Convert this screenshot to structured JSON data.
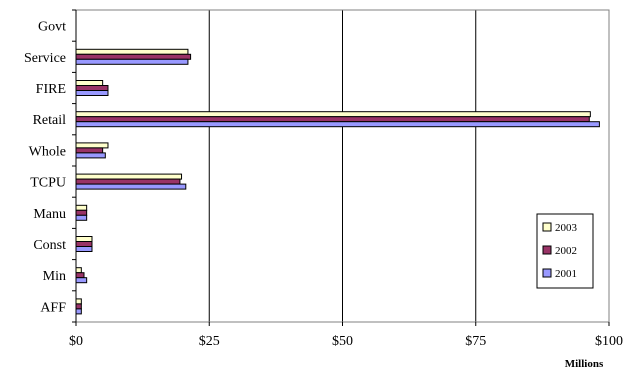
{
  "chart_data": {
    "type": "bar",
    "orientation": "horizontal",
    "categories": [
      "Govt",
      "Service",
      "FIRE",
      "Retail",
      "Whole",
      "TCPU",
      "Manu",
      "Const",
      "Min",
      "AFF"
    ],
    "series": [
      {
        "name": "2003",
        "values": [
          0,
          21.0,
          5.0,
          96.5,
          6.0,
          19.8,
          2.0,
          3.0,
          1.0,
          1.0
        ]
      },
      {
        "name": "2002",
        "values": [
          0,
          21.5,
          6.0,
          96.3,
          5.0,
          19.5,
          2.0,
          3.0,
          1.5,
          1.0
        ]
      },
      {
        "name": "2001",
        "values": [
          0,
          21.0,
          6.0,
          98.2,
          5.5,
          20.6,
          2.0,
          3.0,
          2.0,
          1.0
        ]
      }
    ],
    "xlim": [
      0,
      100
    ],
    "x_ticks": [
      0,
      25,
      50,
      75,
      100
    ],
    "x_tick_labels": [
      "$0",
      "$25",
      "$50",
      "$75",
      "$100"
    ],
    "xlabel": "Millions",
    "ylabel": "",
    "title": "",
    "grid": "vertical",
    "legend": {
      "placement": "right",
      "entries": [
        "2003",
        "2002",
        "2001"
      ]
    },
    "colors": {
      "2003": "#ffffcc",
      "2002": "#993366",
      "2001": "#9999ff",
      "bar_border": "#000000",
      "grid": "#000000",
      "plot_border": "#808080"
    }
  }
}
